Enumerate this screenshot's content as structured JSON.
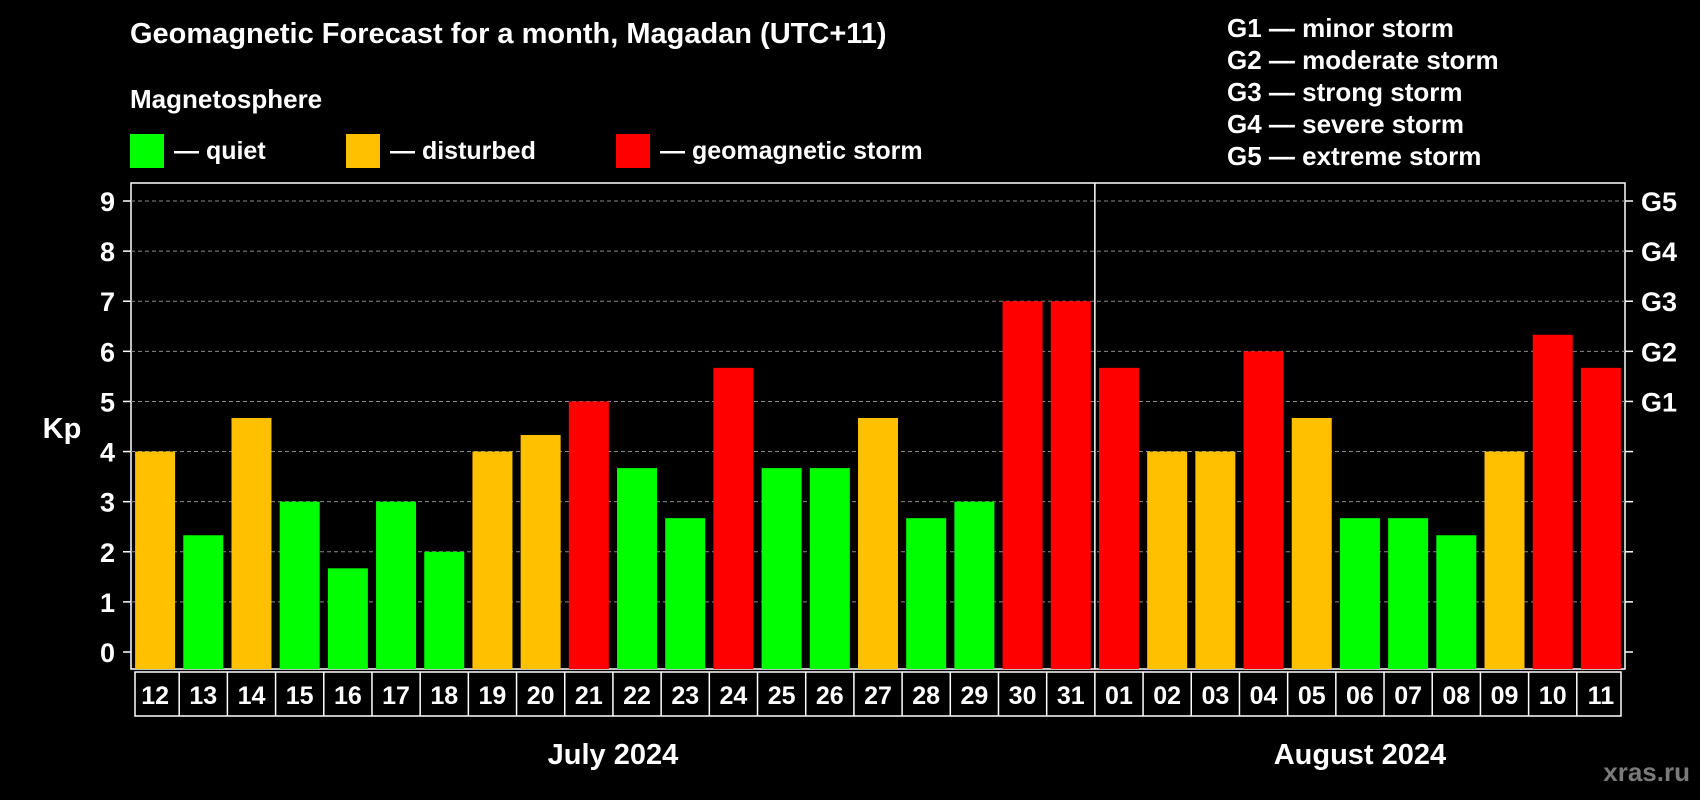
{
  "chart_data": {
    "type": "bar",
    "title": "Geomagnetic Forecast for a month, Magadan (UTC+11)",
    "subtitle": "Magnetosphere",
    "ylabel": "Kp",
    "ylim": [
      0,
      9
    ],
    "yticks": [
      "0",
      "1",
      "2",
      "3",
      "4",
      "5",
      "6",
      "7",
      "8",
      "9"
    ],
    "right_axis": [
      {
        "kp": 5,
        "label": "G1"
      },
      {
        "kp": 6,
        "label": "G2"
      },
      {
        "kp": 7,
        "label": "G3"
      },
      {
        "kp": 8,
        "label": "G4"
      },
      {
        "kp": 9,
        "label": "G5"
      }
    ],
    "categories": [
      "12",
      "13",
      "14",
      "15",
      "16",
      "17",
      "18",
      "19",
      "20",
      "21",
      "22",
      "23",
      "24",
      "25",
      "26",
      "27",
      "28",
      "29",
      "30",
      "31",
      "01",
      "02",
      "03",
      "04",
      "05",
      "06",
      "07",
      "08",
      "09",
      "10",
      "11"
    ],
    "values": [
      4,
      2.33,
      4.67,
      3,
      1.67,
      3,
      2,
      4,
      4.33,
      5,
      3.67,
      2.67,
      5.67,
      3.67,
      3.67,
      4.67,
      2.67,
      3,
      7,
      7,
      5.67,
      4,
      4,
      6,
      4.67,
      2.67,
      2.67,
      2.33,
      4,
      6.33,
      5.67
    ],
    "months": [
      {
        "label": "July 2024",
        "start": 0,
        "count": 20
      },
      {
        "label": "August 2024",
        "start": 20,
        "count": 11
      }
    ],
    "status_colors": {
      "quiet": "#00ff00",
      "disturbed": "#ffc000",
      "storm": "#ff0000"
    },
    "legend": [
      {
        "label": "— quiet",
        "color": "#00ff00"
      },
      {
        "label": "— disturbed",
        "color": "#ffc000"
      },
      {
        "label": "— geomagnetic storm",
        "color": "#ff0000"
      }
    ],
    "scale_legend": [
      "G1 — minor storm",
      "G2 — moderate storm",
      "G3 — strong storm",
      "G4 — severe storm",
      "G5 — extreme storm"
    ]
  },
  "watermark": "xras.ru"
}
